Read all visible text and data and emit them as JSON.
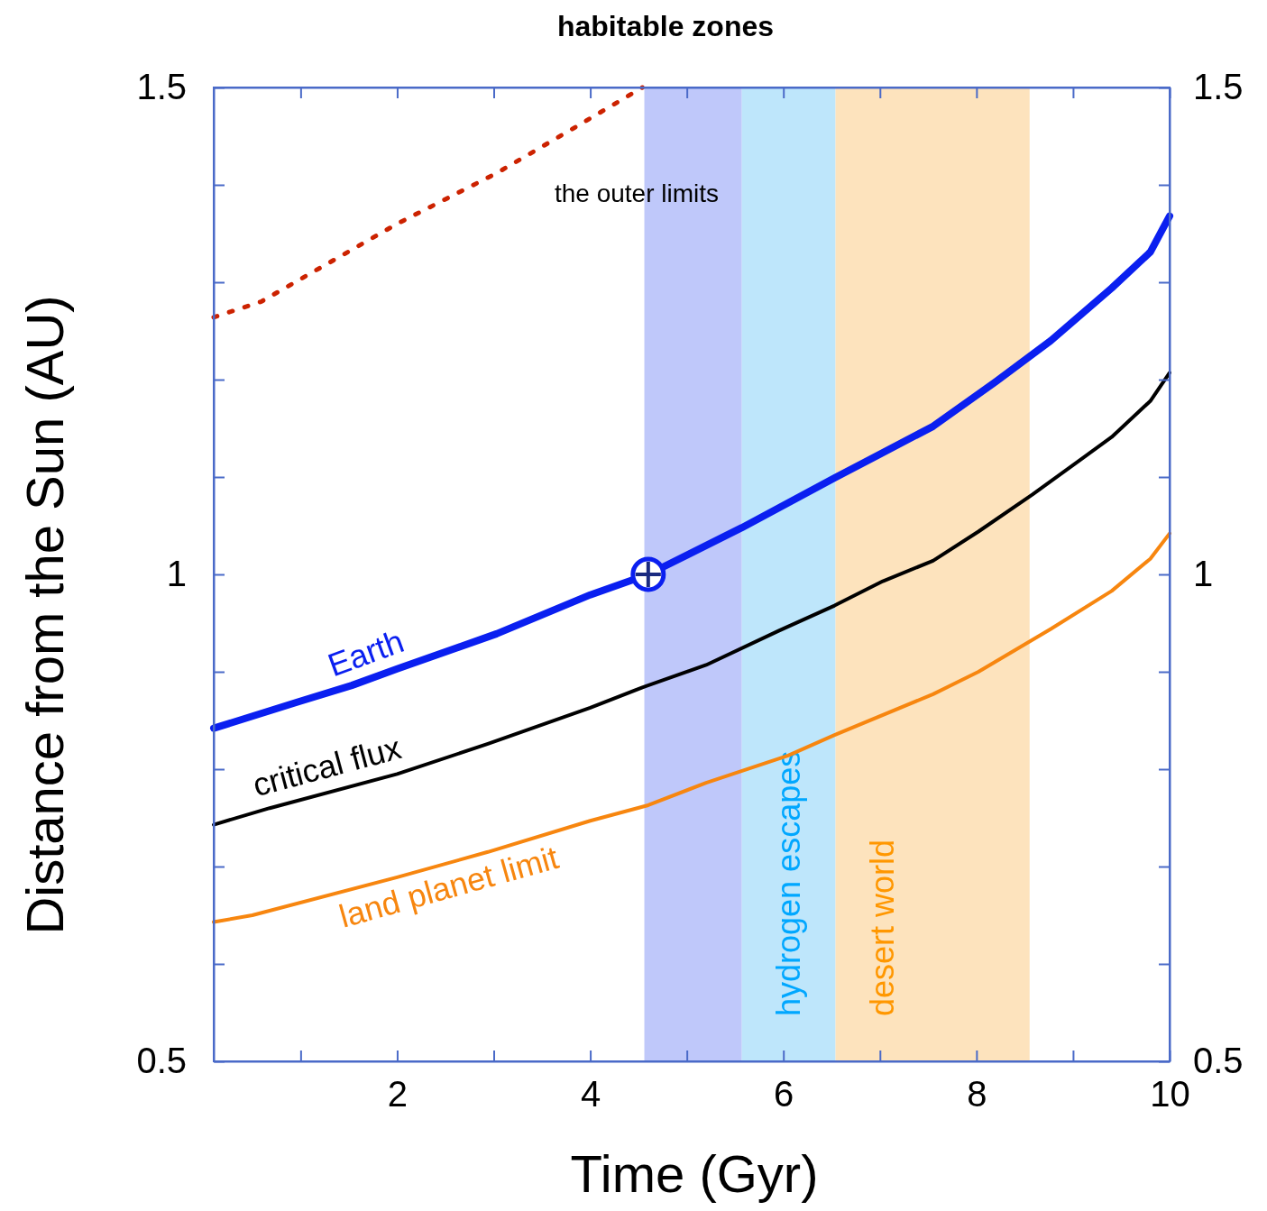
{
  "chart_data": {
    "type": "line",
    "title": "habitable zones",
    "xlabel": "Time (Gyr)",
    "ylabel": "Distance from the Sun (AU)",
    "xlim": [
      0.1,
      10
    ],
    "xticks": [
      {
        "value": 1,
        "label": null
      },
      2,
      {
        "value": 3,
        "label": null
      },
      4,
      {
        "value": 5,
        "label": null
      },
      6,
      {
        "value": 7,
        "label": null
      },
      8,
      {
        "value": 9,
        "label": null
      },
      10
    ],
    "ylim": [
      0.5,
      1.5
    ],
    "yticks": [
      0.5,
      {
        "value": 0.6,
        "label": null
      },
      {
        "value": 0.7,
        "label": null
      },
      {
        "value": 0.8,
        "label": null
      },
      {
        "value": 0.9,
        "label": null
      },
      1,
      {
        "value": 1.1,
        "label": null
      },
      {
        "value": 1.2,
        "label": null
      },
      {
        "value": 1.3,
        "label": null
      },
      {
        "value": 1.4,
        "label": null
      },
      1.5
    ],
    "y2lim": [
      0.5,
      1.5
    ],
    "y2ticks": [
      0.5,
      {
        "value": 0.6,
        "label": null
      },
      {
        "value": 0.7,
        "label": null
      },
      {
        "value": 0.8,
        "label": null
      },
      {
        "value": 0.9,
        "label": null
      },
      1,
      {
        "value": 1.1,
        "label": null
      },
      {
        "value": 1.2,
        "label": null
      },
      {
        "value": 1.3,
        "label": null
      },
      {
        "value": 1.4,
        "label": null
      },
      1.5
    ],
    "series": [
      {
        "name": "Earth",
        "color": "#0a1ff0",
        "line_style": "solid",
        "x": [
          0.1,
          0.97,
          1.53,
          2.0,
          3.03,
          4.0,
          4.6,
          5.57,
          6.53,
          7.55,
          8.2,
          8.77,
          9.4,
          9.8,
          10
        ],
        "values": [
          0.842,
          0.869,
          0.886,
          0.903,
          0.939,
          0.979,
          1.0,
          1.048,
          1.099,
          1.152,
          1.198,
          1.24,
          1.294,
          1.331,
          1.368
        ]
      },
      {
        "name": "critical flux",
        "color": "#000000",
        "line_style": "solid",
        "x": [
          0.1,
          0.68,
          2.0,
          2.94,
          4.0,
          4.54,
          5.2,
          5.95,
          6.53,
          7.03,
          7.55,
          8.02,
          8.58,
          9.4,
          9.8,
          10
        ],
        "values": [
          0.743,
          0.76,
          0.795,
          0.826,
          0.863,
          0.884,
          0.907,
          0.942,
          0.968,
          0.993,
          1.014,
          1.044,
          1.082,
          1.141,
          1.178,
          1.207
        ]
      },
      {
        "name": "land planet limit",
        "color": "#f7860f",
        "line_style": "solid",
        "x": [
          0.1,
          0.5,
          2.0,
          2.94,
          4.0,
          4.6,
          5.2,
          6.05,
          6.53,
          7.55,
          8.02,
          8.77,
          9.4,
          9.8,
          10
        ],
        "values": [
          0.643,
          0.65,
          0.689,
          0.715,
          0.747,
          0.763,
          0.786,
          0.814,
          0.835,
          0.877,
          0.9,
          0.944,
          0.983,
          1.016,
          1.042
        ]
      },
      {
        "color": "#cc2200",
        "line_style": "dotted",
        "x": [
          0.1,
          0.59,
          2.0,
          3.03,
          3.79,
          4.54
        ],
        "values": [
          1.264,
          1.28,
          1.36,
          1.412,
          1.456,
          1.5
        ]
      },
      {
        "type": "scatter",
        "color": "#0a1ff0",
        "marker": "circle",
        "x": [
          4.6
        ],
        "values": [
          1.0
        ]
      }
    ],
    "bands": [
      {
        "axis": "x",
        "from": 4.56,
        "to": 5.57,
        "color": "#bfc8fa"
      },
      {
        "axis": "x",
        "from": 5.57,
        "to": 6.54,
        "label": "hydrogen escapes",
        "color": "#bee6fb"
      },
      {
        "axis": "x",
        "from": 6.54,
        "to": 8.55,
        "label": "desert world",
        "color": "#fde3bd"
      }
    ],
    "annotations": [
      "the outer limits"
    ]
  }
}
